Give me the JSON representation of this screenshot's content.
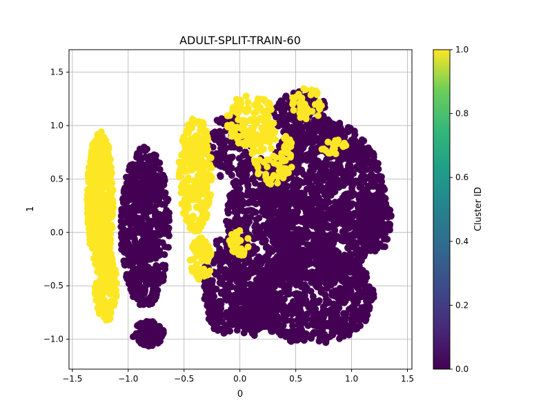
{
  "chart_data": {
    "type": "scatter",
    "title": "ADULT-SPLIT-TRAIN-60",
    "xlabel": "0",
    "ylabel": "1",
    "xlim": [
      -1.53,
      1.54
    ],
    "ylim": [
      -1.28,
      1.71
    ],
    "xticks": [
      -1.5,
      -1.0,
      -0.5,
      0.0,
      0.5,
      1.0,
      1.5
    ],
    "xtick_labels": [
      "−1.5",
      "−1.0",
      "−0.5",
      "0.0",
      "0.5",
      "1.0",
      "1.5"
    ],
    "yticks": [
      -1.0,
      -0.5,
      0.0,
      0.5,
      1.0,
      1.5
    ],
    "ytick_labels": [
      "−1.0",
      "−0.5",
      "0.0",
      "0.5",
      "1.0",
      "1.5"
    ],
    "grid": true,
    "colorbar": {
      "label": "Cluster ID",
      "min": 0.0,
      "max": 1.0,
      "ticks": [
        0.0,
        0.2,
        0.4,
        0.6,
        0.8,
        1.0
      ],
      "tick_labels": [
        "0.0",
        "0.2",
        "0.4",
        "0.6",
        "0.8",
        "1.0"
      ],
      "colormap": "viridis"
    },
    "colors": {
      "cluster_0": "#440154",
      "cluster_1": "#fde725"
    },
    "series": [
      {
        "cluster": 0,
        "color": "#440154",
        "regions": [
          {
            "cx": 0.75,
            "cy": 0.3,
            "rx": 0.55,
            "ry": 0.75,
            "n": 1400
          },
          {
            "cx": 0.65,
            "cy": -0.6,
            "rx": 0.55,
            "ry": 0.45,
            "n": 700
          },
          {
            "cx": 0.15,
            "cy": 0.0,
            "rx": 0.28,
            "ry": 0.7,
            "n": 450
          },
          {
            "cx": -0.15,
            "cy": -0.5,
            "rx": 0.18,
            "ry": 0.45,
            "n": 200
          },
          {
            "cx": 0.1,
            "cy": -0.75,
            "rx": 0.22,
            "ry": 0.22,
            "n": 160
          },
          {
            "cx": -0.85,
            "cy": 0.05,
            "rx": 0.22,
            "ry": 0.75,
            "n": 650
          },
          {
            "cx": -0.82,
            "cy": -0.95,
            "rx": 0.14,
            "ry": 0.12,
            "n": 90
          },
          {
            "cx": 1.2,
            "cy": 0.1,
            "rx": 0.16,
            "ry": 0.3,
            "n": 160
          },
          {
            "cx": 0.55,
            "cy": 1.1,
            "rx": 0.25,
            "ry": 0.22,
            "n": 150
          },
          {
            "cx": -0.1,
            "cy": 0.8,
            "rx": 0.2,
            "ry": 0.3,
            "n": 120
          }
        ]
      },
      {
        "cluster": 1,
        "color": "#fde725",
        "regions": [
          {
            "cx": -1.25,
            "cy": 0.3,
            "rx": 0.12,
            "ry": 0.65,
            "n": 650
          },
          {
            "cx": -1.2,
            "cy": -0.5,
            "rx": 0.1,
            "ry": 0.35,
            "n": 150
          },
          {
            "cx": -0.4,
            "cy": 0.55,
            "rx": 0.15,
            "ry": 0.55,
            "n": 300
          },
          {
            "cx": -0.35,
            "cy": -0.25,
            "rx": 0.1,
            "ry": 0.2,
            "n": 60
          },
          {
            "cx": 0.1,
            "cy": 1.05,
            "rx": 0.22,
            "ry": 0.25,
            "n": 130
          },
          {
            "cx": 0.3,
            "cy": 0.7,
            "rx": 0.2,
            "ry": 0.25,
            "n": 90
          },
          {
            "cx": 0.6,
            "cy": 1.2,
            "rx": 0.15,
            "ry": 0.15,
            "n": 40
          },
          {
            "cx": 0.85,
            "cy": 0.8,
            "rx": 0.12,
            "ry": 0.1,
            "n": 20
          },
          {
            "cx": 0.0,
            "cy": -0.1,
            "rx": 0.1,
            "ry": 0.12,
            "n": 30
          }
        ]
      }
    ],
    "marker_radius": 5
  }
}
